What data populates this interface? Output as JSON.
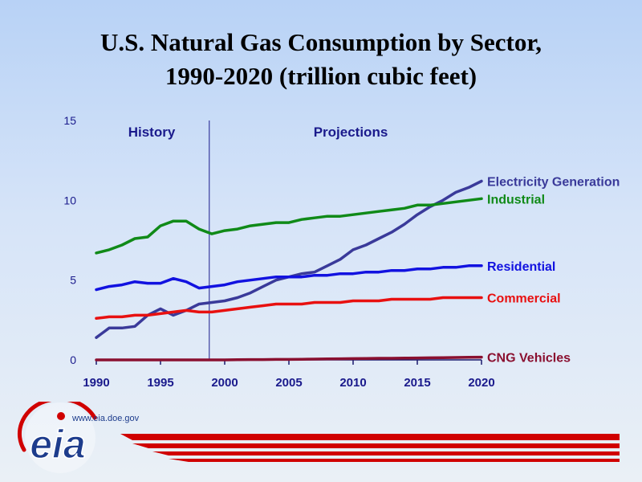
{
  "chart_data": {
    "type": "line",
    "title": [
      "U.S. Natural Gas Consumption by Sector,",
      "1990-2020 (trillion cubic feet)"
    ],
    "xlabel": "",
    "ylabel": "",
    "xlim": [
      1990,
      2020
    ],
    "ylim": [
      0,
      15
    ],
    "x_ticks": [
      1990,
      1995,
      2000,
      2005,
      2010,
      2015,
      2020
    ],
    "y_ticks": [
      0,
      5,
      10,
      15
    ],
    "grid": false,
    "legend": "labels at right end of each line",
    "annotations": {
      "history": "History",
      "projections": "Projections",
      "divider_year": 1998.8
    },
    "x": [
      1990,
      1991,
      1992,
      1993,
      1994,
      1995,
      1996,
      1997,
      1998,
      1999,
      2000,
      2001,
      2002,
      2003,
      2004,
      2005,
      2006,
      2007,
      2008,
      2009,
      2010,
      2011,
      2012,
      2013,
      2014,
      2015,
      2016,
      2017,
      2018,
      2019,
      2020
    ],
    "series": [
      {
        "name": "Electricity Generation",
        "color": "#3a3a9a",
        "values": [
          1.4,
          2.0,
          2.0,
          2.1,
          2.8,
          3.2,
          2.8,
          3.1,
          3.5,
          3.6,
          3.7,
          3.9,
          4.2,
          4.6,
          5.0,
          5.2,
          5.4,
          5.5,
          5.9,
          6.3,
          6.9,
          7.2,
          7.6,
          8.0,
          8.5,
          9.1,
          9.6,
          10.0,
          10.5,
          10.8,
          11.2
        ]
      },
      {
        "name": "Industrial",
        "color": "#108a18",
        "values": [
          6.7,
          6.9,
          7.2,
          7.6,
          7.7,
          8.4,
          8.7,
          8.7,
          8.2,
          7.9,
          8.1,
          8.2,
          8.4,
          8.5,
          8.6,
          8.6,
          8.8,
          8.9,
          9.0,
          9.0,
          9.1,
          9.2,
          9.3,
          9.4,
          9.5,
          9.7,
          9.7,
          9.8,
          9.9,
          10.0,
          10.1
        ]
      },
      {
        "name": "Residential",
        "color": "#1212e0",
        "values": [
          4.4,
          4.6,
          4.7,
          4.9,
          4.8,
          4.8,
          5.1,
          4.9,
          4.5,
          4.6,
          4.7,
          4.9,
          5.0,
          5.1,
          5.2,
          5.2,
          5.2,
          5.3,
          5.3,
          5.4,
          5.4,
          5.5,
          5.5,
          5.6,
          5.6,
          5.7,
          5.7,
          5.8,
          5.8,
          5.9,
          5.9
        ]
      },
      {
        "name": "Commercial",
        "color": "#e81010",
        "values": [
          2.6,
          2.7,
          2.7,
          2.8,
          2.8,
          2.9,
          3.0,
          3.1,
          3.0,
          3.0,
          3.1,
          3.2,
          3.3,
          3.4,
          3.5,
          3.5,
          3.5,
          3.6,
          3.6,
          3.6,
          3.7,
          3.7,
          3.7,
          3.8,
          3.8,
          3.8,
          3.8,
          3.9,
          3.9,
          3.9,
          3.9
        ]
      },
      {
        "name": "CNG Vehicles",
        "color": "#8a1030",
        "values": [
          0.0,
          0.0,
          0.0,
          0.0,
          0.0,
          0.0,
          0.0,
          0.0,
          0.0,
          0.0,
          0.0,
          0.01,
          0.02,
          0.02,
          0.03,
          0.03,
          0.04,
          0.05,
          0.06,
          0.07,
          0.08,
          0.09,
          0.1,
          0.1,
          0.11,
          0.12,
          0.13,
          0.14,
          0.15,
          0.16,
          0.17
        ]
      }
    ]
  },
  "footer": {
    "logo_text": "eia",
    "url": "www.eia.doe.gov",
    "accent_color": "#d00000",
    "logo_color": "#1d3c8c"
  }
}
